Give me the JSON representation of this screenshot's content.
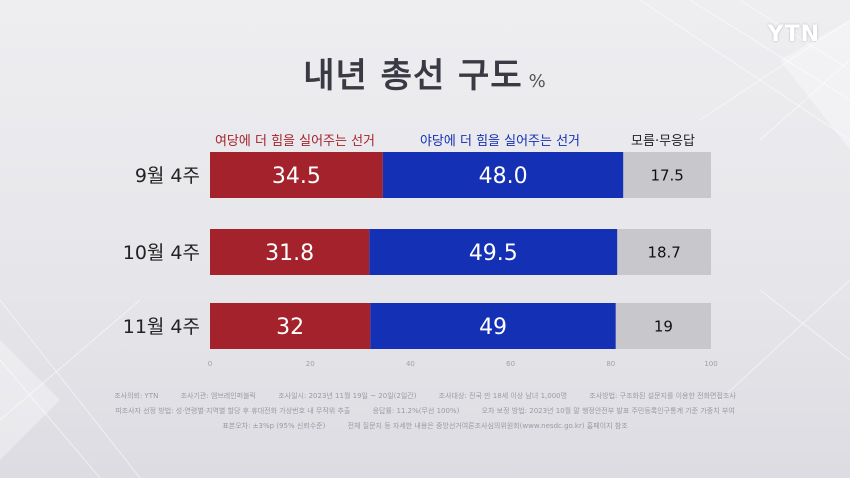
{
  "logo": "YTN",
  "title": "내년 총선 구도",
  "unit": "%",
  "chart_data": {
    "type": "bar",
    "stacked": true,
    "orientation": "horizontal",
    "categories": [
      "9월 4주",
      "10월 4주",
      "11월 4주"
    ],
    "series": [
      {
        "name": "여당에 더 힘을 실어주는 선거",
        "values": [
          34.5,
          31.8,
          32
        ],
        "labels": [
          "34.5",
          "31.8",
          "32"
        ],
        "color": "#a3222c"
      },
      {
        "name": "야당에 더 힘을 실어주는 선거",
        "values": [
          48.0,
          49.5,
          49
        ],
        "labels": [
          "48.0",
          "49.5",
          "49"
        ],
        "color": "#1430b4"
      },
      {
        "name": "모름·무응답",
        "values": [
          17.5,
          18.7,
          19
        ],
        "labels": [
          "17.5",
          "18.7",
          "19"
        ],
        "color": "#c8c8cc"
      }
    ],
    "xlim": [
      0,
      100
    ],
    "ticks": [
      "0",
      "20",
      "40",
      "60",
      "80",
      "100"
    ]
  },
  "footer": {
    "line1": [
      "조사의뢰: YTN",
      "조사기관: 엠브레인퍼블릭",
      "조사일시: 2023년 11월 19일 ~ 20일(2일간)",
      "조사대상: 전국 만 18세 이상 남녀 1,000명",
      "조사방법: 구조화된 설문지를 이용한 전화면접조사"
    ],
    "line2": [
      "피조사자 선정 방법: 성·연령별·지역별 할당 후 휴대전화 가상번호 내 무작위 추출",
      "응답률: 11.2%(무선 100%)",
      "오차 보정 방법: 2023년 10월 말 행정안전부 발표 주민등록인구통계 기준 가중치 부여"
    ],
    "line3": [
      "표본오차: ±3%p (95% 신뢰수준)",
      "전체 질문지 등 자세한 내용은 중앙선거여론조사심의위원회(www.nesdc.go.kr) 홈페이지 참조"
    ]
  }
}
